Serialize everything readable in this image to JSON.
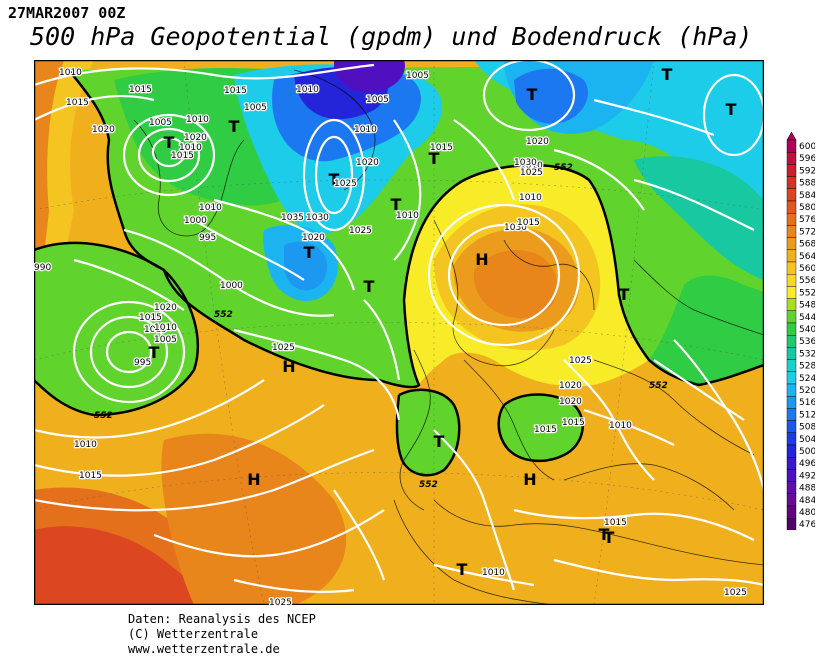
{
  "header": {
    "date": "27MAR2007 00Z",
    "title": "500 hPa Geopotential (gpdm) und Bodendruck (hPa)"
  },
  "credits": {
    "line1": "Daten: Reanalysis des NCEP",
    "line2": "(C) Wetterzentrale",
    "line3": "www.wetterzentrale.de"
  },
  "legend": {
    "levels": [
      {
        "value": "600",
        "color": "#b0005a"
      },
      {
        "value": "596",
        "color": "#c01040"
      },
      {
        "value": "592",
        "color": "#cc1e30"
      },
      {
        "value": "588",
        "color": "#d43224"
      },
      {
        "value": "584",
        "color": "#dc4620"
      },
      {
        "value": "580",
        "color": "#e0581e"
      },
      {
        "value": "576",
        "color": "#e4701c"
      },
      {
        "value": "572",
        "color": "#e8861c"
      },
      {
        "value": "568",
        "color": "#ec9c1c"
      },
      {
        "value": "564",
        "color": "#f0b01e"
      },
      {
        "value": "560",
        "color": "#f4c420"
      },
      {
        "value": "556",
        "color": "#f8d822"
      },
      {
        "value": "552",
        "color": "#f8ec28"
      },
      {
        "value": "548",
        "color": "#a8e020"
      },
      {
        "value": "544",
        "color": "#60d42c"
      },
      {
        "value": "540",
        "color": "#30cc44"
      },
      {
        "value": "536",
        "color": "#20c870"
      },
      {
        "value": "532",
        "color": "#18c8a0"
      },
      {
        "value": "528",
        "color": "#18d0cc"
      },
      {
        "value": "524",
        "color": "#1ccce8"
      },
      {
        "value": "520",
        "color": "#1cb4f0"
      },
      {
        "value": "516",
        "color": "#1c98f0"
      },
      {
        "value": "512",
        "color": "#1c78f0"
      },
      {
        "value": "508",
        "color": "#1c58ec"
      },
      {
        "value": "504",
        "color": "#1c3ce4"
      },
      {
        "value": "500",
        "color": "#2424d8"
      },
      {
        "value": "496",
        "color": "#3a18cc"
      },
      {
        "value": "492",
        "color": "#5010c0"
      },
      {
        "value": "488",
        "color": "#620cb0"
      },
      {
        "value": "484",
        "color": "#6a0898"
      },
      {
        "value": "480",
        "color": "#620480"
      },
      {
        "value": "476",
        "color": "#520068"
      }
    ]
  },
  "pressure_systems": [
    {
      "id": "T-greenland-sw",
      "letter": "T",
      "type": "low"
    },
    {
      "id": "T-greenland",
      "letter": "T",
      "type": "low"
    },
    {
      "id": "T-iceland",
      "letter": "T",
      "type": "low"
    },
    {
      "id": "T-scandinavia-n",
      "letter": "T",
      "type": "low"
    },
    {
      "id": "T-barents",
      "letter": "T",
      "type": "low"
    },
    {
      "id": "T-siberia",
      "letter": "T",
      "type": "low"
    },
    {
      "id": "T-russia",
      "letter": "T",
      "type": "low"
    },
    {
      "id": "T-atlantic",
      "letter": "T",
      "type": "low"
    },
    {
      "id": "T-labrador",
      "letter": "T",
      "type": "low"
    },
    {
      "id": "T-mid-atlantic",
      "letter": "T",
      "type": "low"
    },
    {
      "id": "T-east",
      "letter": "T",
      "type": "low"
    },
    {
      "id": "T-iberia",
      "letter": "T",
      "type": "low"
    },
    {
      "id": "T-mediterranean",
      "letter": "T",
      "type": "low"
    },
    {
      "id": "T-north-africa",
      "letter": "T",
      "type": "low"
    },
    {
      "id": "T-newfoundland",
      "letter": "T",
      "type": "low"
    },
    {
      "id": "T-greenland-n",
      "letter": "T",
      "type": "low"
    },
    {
      "id": "H-scandinavia",
      "letter": "H",
      "type": "high"
    },
    {
      "id": "H-azores",
      "letter": "H",
      "type": "high"
    },
    {
      "id": "H-subtropic",
      "letter": "H",
      "type": "high"
    },
    {
      "id": "H-balkan",
      "letter": "H",
      "type": "high"
    }
  ],
  "isobar_labels": [
    "1010",
    "1015",
    "1020",
    "1015",
    "1005",
    "1010",
    "1015",
    "1005",
    "1010",
    "1005",
    "1010",
    "1020",
    "1015",
    "1010",
    "1000",
    "995",
    "990",
    "1000",
    "1005",
    "1010",
    "1020",
    "1025",
    "1030",
    "1035",
    "1020",
    "1025",
    "1010",
    "1015",
    "1010",
    "1020",
    "1025",
    "1030",
    "1030",
    "1010",
    "1015",
    "1020",
    "1015",
    "1015",
    "1010",
    "1005",
    "995",
    "1025",
    "1010",
    "1015",
    "1025",
    "1020",
    "1025",
    "1015",
    "1020",
    "1015",
    "1010",
    "1015",
    "1010",
    "1025"
  ],
  "contour_labels": [
    "552",
    "552",
    "552",
    "552",
    "552"
  ],
  "colors": {
    "isobar": "#ffffff",
    "contour552": "#000000",
    "border": "#000000"
  }
}
